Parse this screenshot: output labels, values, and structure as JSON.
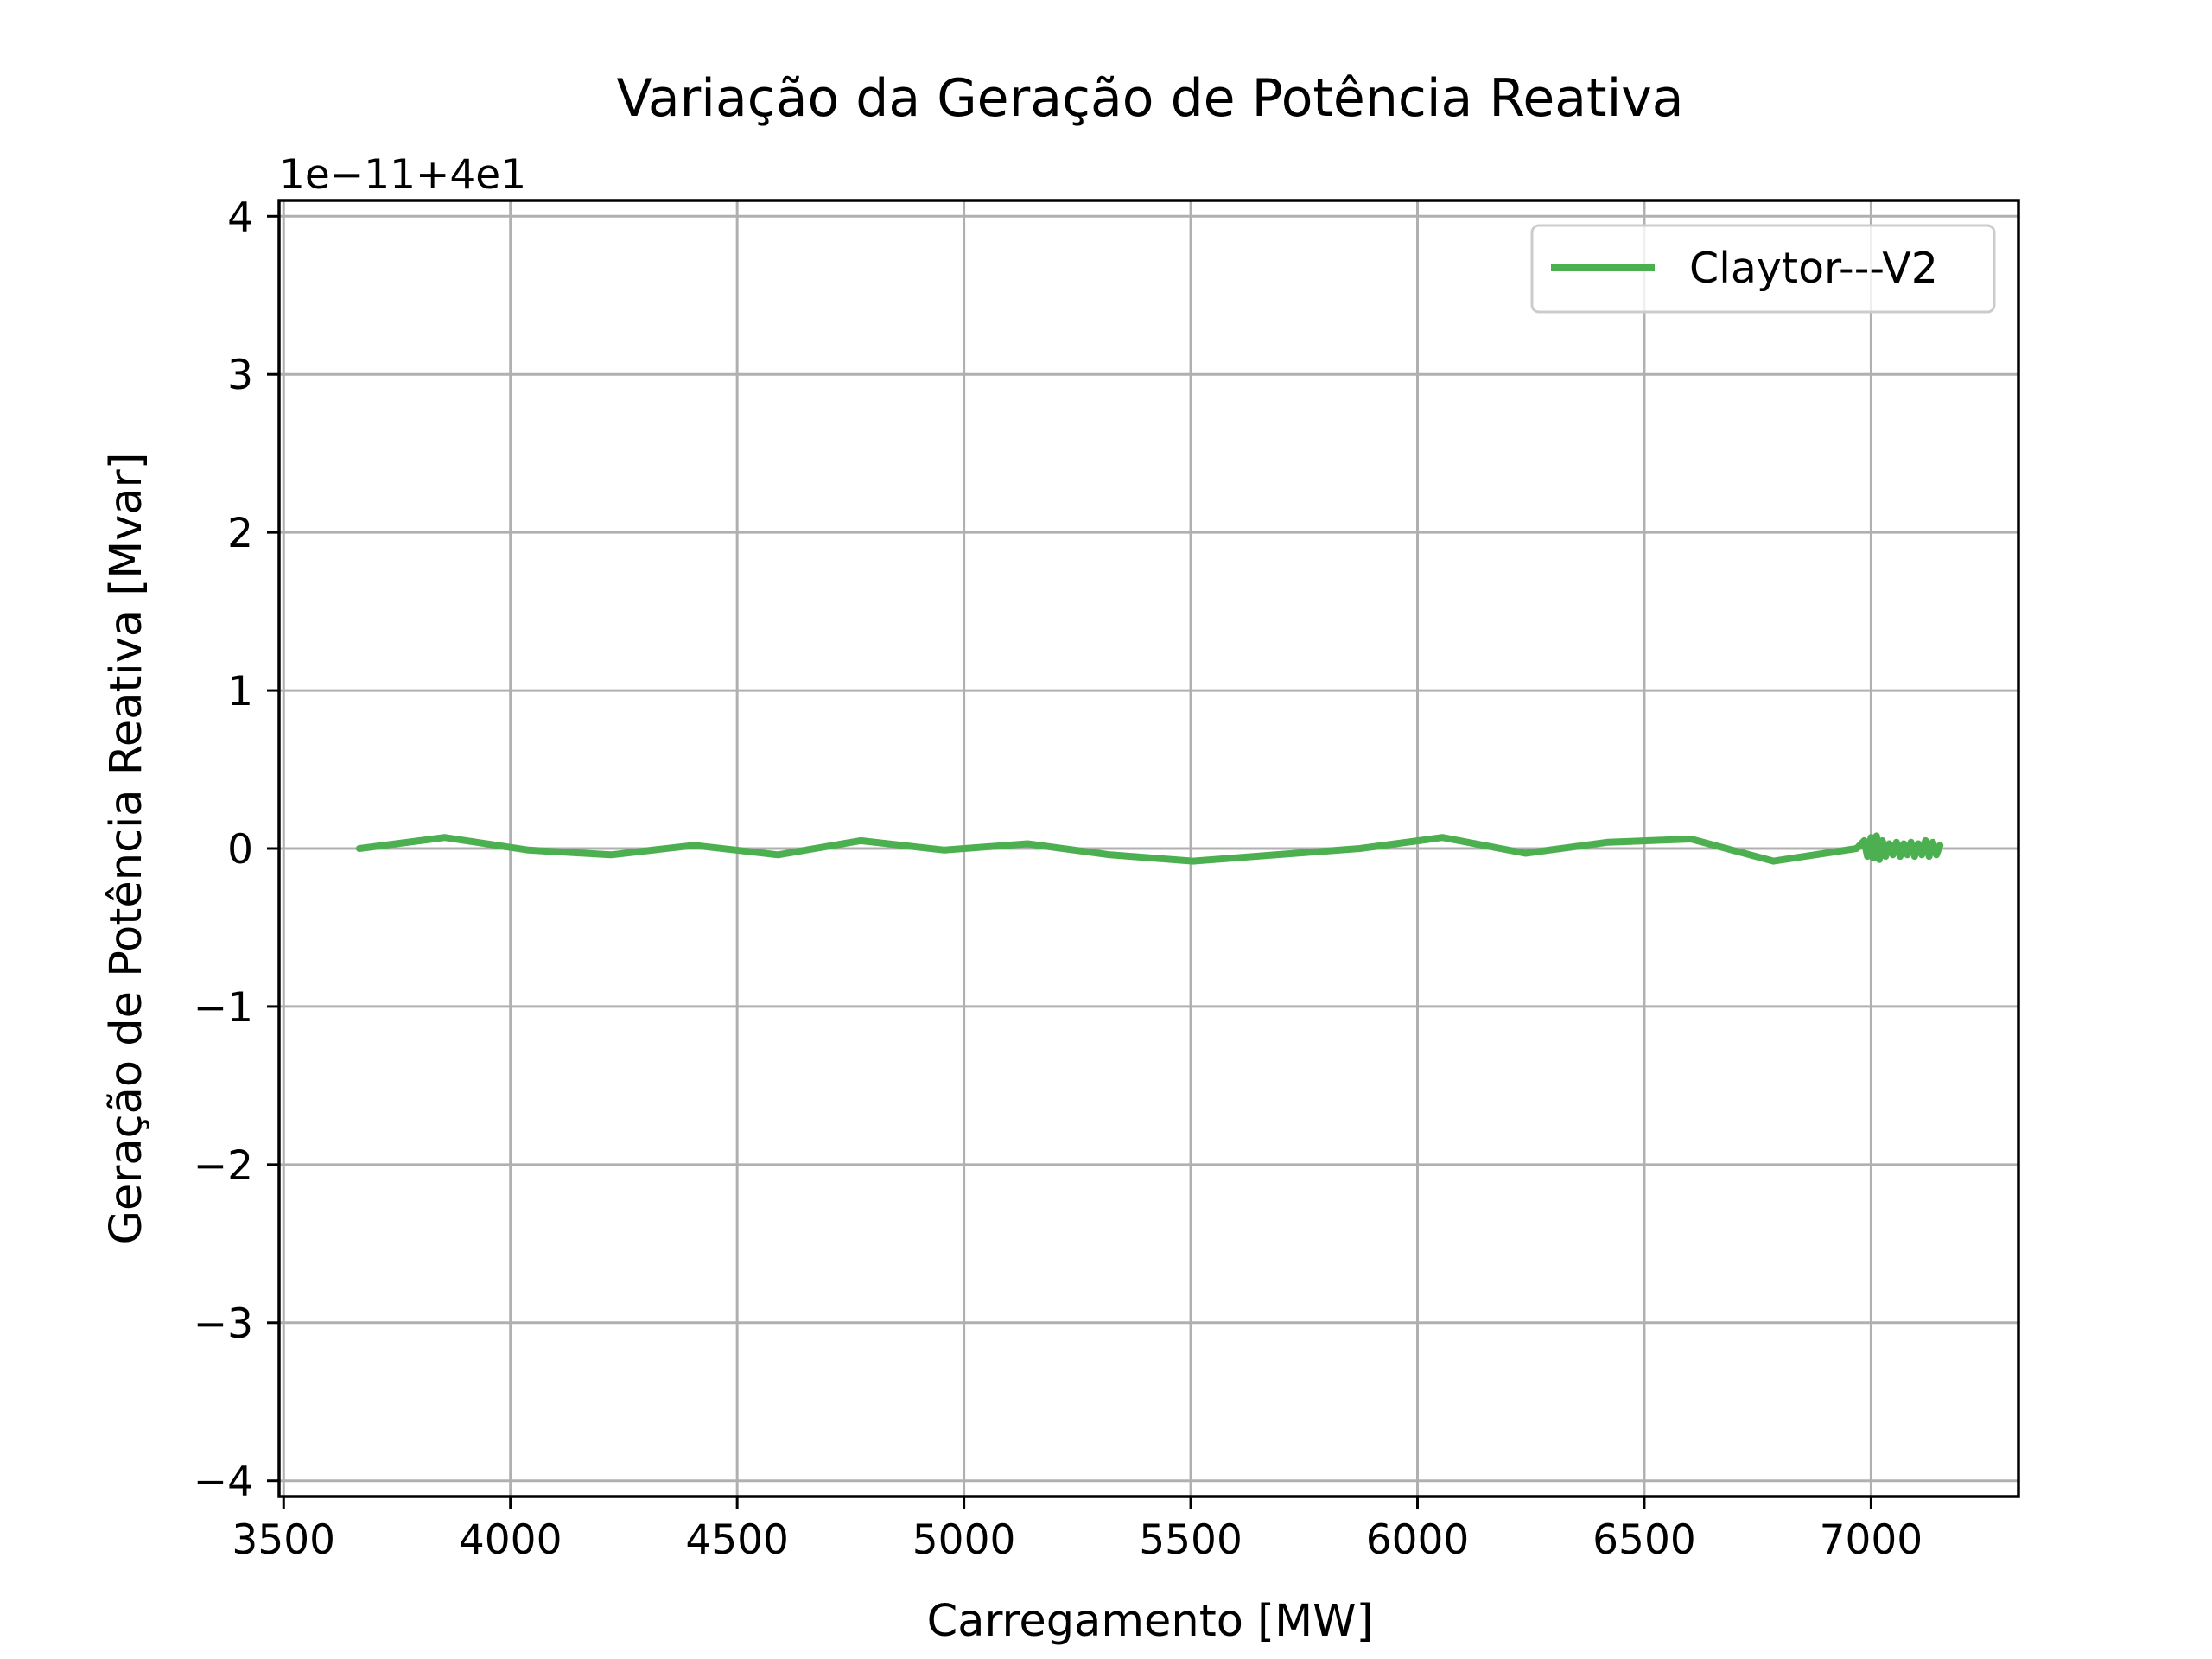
{
  "chart_data": {
    "type": "line",
    "title": "Variação da Geração de Potência Reativa",
    "xlabel": "Carregamento [MW]",
    "ylabel": "Geração de Potência Reativa [Mvar]",
    "y_offset_text": "1e−11+4e1",
    "xlim": [
      3490,
      7325
    ],
    "ylim": [
      -4.1,
      4.1
    ],
    "x_ticks": [
      3500,
      4000,
      4500,
      5000,
      5500,
      6000,
      6500,
      7000
    ],
    "x_tick_labels": [
      "3500",
      "4000",
      "4500",
      "5000",
      "5500",
      "6000",
      "6500",
      "7000"
    ],
    "y_ticks": [
      -4,
      -3,
      -2,
      -1,
      0,
      1,
      2,
      3,
      4
    ],
    "y_tick_labels": [
      "−4",
      "−3",
      "−2",
      "−1",
      "0",
      "1",
      "2",
      "3",
      "4"
    ],
    "grid": true,
    "legend_position": "top-right",
    "series": [
      {
        "name": "Claytor---V2",
        "color": "#4caf50",
        "x": [
          3667,
          3855,
          4040,
          4222,
          4405,
          4590,
          4772,
          4957,
          5140,
          5322,
          5505,
          5688,
          5873,
          6055,
          6238,
          6420,
          6603,
          6785,
          6968,
          6985,
          6992,
          7000,
          7005,
          7012,
          7018,
          7025,
          7032,
          7040,
          7048,
          7056,
          7064,
          7072,
          7080,
          7088,
          7096,
          7104,
          7112,
          7120,
          7128,
          7136,
          7144,
          7152
        ],
        "y": [
          0.0,
          0.07,
          -0.01,
          -0.04,
          0.02,
          -0.04,
          0.05,
          -0.01,
          0.03,
          -0.04,
          -0.08,
          -0.04,
          0.0,
          0.07,
          -0.03,
          0.04,
          0.06,
          -0.08,
          0.0,
          0.05,
          -0.05,
          0.07,
          -0.06,
          0.08,
          -0.07,
          0.05,
          -0.05,
          0.03,
          -0.04,
          0.04,
          -0.05,
          0.03,
          -0.04,
          0.04,
          -0.05,
          0.03,
          -0.04,
          0.05,
          -0.05,
          0.04,
          -0.04,
          0.02
        ]
      }
    ]
  }
}
